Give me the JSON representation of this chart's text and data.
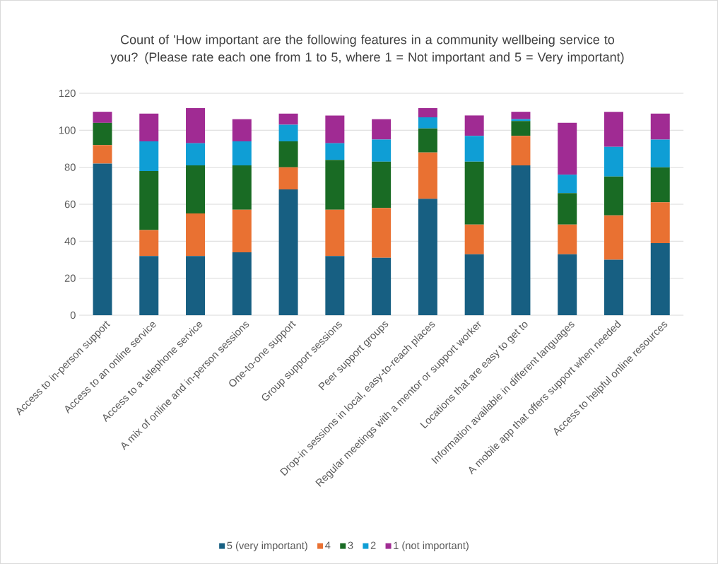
{
  "chart_data": {
    "type": "bar",
    "stacked": true,
    "title": "Count of 'How important are the following features in a community wellbeing service to you? (Please rate each one from 1 to 5, where 1 = Not important and 5 = Very important)",
    "categories": [
      "Access to in-person support",
      "Access to an online service",
      "Access to a telephone service",
      "A mix of online and in-person sessions",
      "One-to-one support",
      "Group support sessions",
      "Peer support groups",
      "Drop-in sessions in local, easy-to-reach places",
      "Regular meetings with a mentor or support worker",
      "Locations that are easy to get to",
      "Information available in different languages",
      "A mobile app that offers support when needed",
      "Access to helpful online resources"
    ],
    "series": [
      {
        "name": "5 (very important)",
        "color": "#175f82",
        "values": [
          82,
          32,
          32,
          34,
          68,
          32,
          31,
          63,
          33,
          81,
          33,
          30,
          39
        ]
      },
      {
        "name": "4",
        "color": "#e97132",
        "values": [
          10,
          14,
          23,
          23,
          12,
          25,
          27,
          25,
          16,
          16,
          16,
          24,
          22
        ]
      },
      {
        "name": "3",
        "color": "#196b24",
        "values": [
          12,
          32,
          26,
          24,
          14,
          27,
          25,
          13,
          34,
          8,
          17,
          21,
          19
        ]
      },
      {
        "name": "2",
        "color": "#0f9ed5",
        "values": [
          0,
          16,
          12,
          13,
          9,
          9,
          12,
          6,
          14,
          1,
          10,
          16,
          15
        ]
      },
      {
        "name": "1 (not important)",
        "color": "#a02b93",
        "values": [
          6,
          15,
          19,
          12,
          6,
          15,
          11,
          5,
          11,
          4,
          28,
          19,
          14
        ]
      }
    ],
    "ylim": [
      0,
      120
    ],
    "yticks": [
      0,
      20,
      40,
      60,
      80,
      100,
      120
    ],
    "grid": "y",
    "legend": "bottom"
  }
}
